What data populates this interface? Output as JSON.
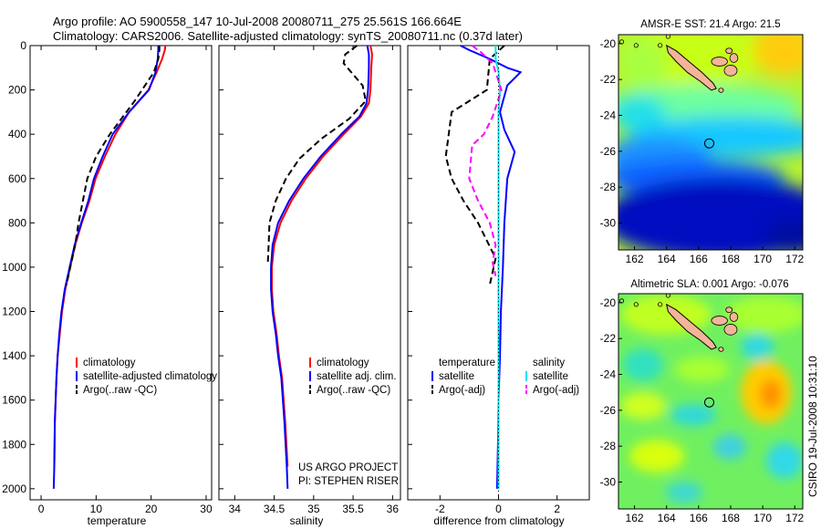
{
  "figure": {
    "title_line1": "Argo profile: AO 5900558_147 10-Jul-2008 20080711_275 25.561S 166.664E",
    "title_line2": "Climatology: CARS2006. Satellite-adjusted climatology: synTS_20080711.nc (0.37d later)",
    "credit": "CSIRO 19-Jul-2008 10:31:10",
    "project_line1": "US ARGO PROJECT",
    "project_line2": "PI: STEPHEN RISER"
  },
  "colors": {
    "climatology": "#ff0000",
    "satellite": "#0000ff",
    "argo": "#000000",
    "sal_satellite": "#00e5ee",
    "sal_argo": "#ff00ff",
    "land": "#f4b49a"
  },
  "chart_data": [
    {
      "type": "line",
      "id": "temperature",
      "xlabel": "temperature",
      "ylabel": "",
      "xlim": [
        -2,
        31
      ],
      "ylim": [
        2050,
        0
      ],
      "xticks": [
        0,
        10,
        20,
        30
      ],
      "yticks": [
        0,
        200,
        400,
        600,
        800,
        1000,
        1200,
        1400,
        1600,
        1800,
        2000
      ],
      "legend": "lower-left",
      "series": [
        {
          "name": "climatology",
          "color": "#ff0000",
          "dash": "solid",
          "x": [
            22.6,
            22.5,
            22.0,
            21.0,
            19.5,
            16.0,
            13.5,
            11.6,
            9.9,
            8.8,
            7.4,
            6.2,
            5.3,
            4.4,
            3.8,
            3.4,
            3.0,
            2.8,
            2.5,
            2.4
          ],
          "y": [
            0,
            20,
            60,
            120,
            200,
            300,
            400,
            500,
            600,
            700,
            800,
            900,
            1000,
            1100,
            1200,
            1300,
            1400,
            1500,
            1700,
            1900
          ]
        },
        {
          "name": "satellite-adjusted climatology",
          "color": "#0000ff",
          "dash": "solid",
          "x": [
            21.3,
            21.3,
            21.2,
            20.8,
            19.6,
            16.0,
            13.0,
            11.2,
            9.6,
            8.6,
            7.3,
            6.1,
            5.2,
            4.3,
            3.7,
            3.3,
            3.0,
            2.8,
            2.5,
            2.4,
            2.3
          ],
          "y": [
            0,
            20,
            60,
            120,
            200,
            300,
            400,
            500,
            600,
            700,
            800,
            900,
            1000,
            1100,
            1200,
            1300,
            1400,
            1500,
            1700,
            1900,
            2000
          ]
        },
        {
          "name": "Argo(..raw -QC)",
          "color": "#000000",
          "dash": "dash",
          "x": [
            21.5,
            21.5,
            21.3,
            20.5,
            17.0,
            12.5,
            10.0,
            8.4,
            7.6,
            6.8,
            6.2,
            5.3,
            4.6
          ],
          "y": [
            0,
            20,
            60,
            120,
            250,
            400,
            500,
            600,
            700,
            800,
            900,
            1000,
            1080
          ]
        }
      ]
    },
    {
      "type": "line",
      "id": "salinity",
      "xlabel": "salinity",
      "ylabel": "",
      "xlim": [
        33.8,
        36.1
      ],
      "ylim": [
        2050,
        0
      ],
      "xticks": [
        34,
        34.5,
        35,
        35.5,
        36
      ],
      "xticklabels": [
        "34",
        "34.5",
        "35",
        "35.5",
        "36"
      ],
      "legend": "lower-left",
      "series": [
        {
          "name": "climatology",
          "color": "#ff0000",
          "dash": "solid",
          "x": [
            35.72,
            35.74,
            35.73,
            35.72,
            35.7,
            35.6,
            35.38,
            35.12,
            34.9,
            34.72,
            34.58,
            34.5,
            34.47,
            34.47,
            34.49,
            34.53,
            34.56,
            34.6,
            34.64,
            34.67
          ],
          "y": [
            0,
            40,
            100,
            200,
            260,
            320,
            400,
            500,
            600,
            700,
            800,
            900,
            1000,
            1100,
            1200,
            1300,
            1400,
            1500,
            1700,
            1900
          ]
        },
        {
          "name": "satellite adj. clim.",
          "color": "#0000ff",
          "dash": "solid",
          "x": [
            35.68,
            35.7,
            35.7,
            35.69,
            35.67,
            35.58,
            35.35,
            35.09,
            34.87,
            34.69,
            34.55,
            34.48,
            34.46,
            34.46,
            34.48,
            34.52,
            34.55,
            34.59,
            34.63,
            34.66,
            34.67
          ],
          "y": [
            0,
            40,
            100,
            200,
            260,
            320,
            400,
            500,
            600,
            700,
            800,
            900,
            1000,
            1100,
            1200,
            1300,
            1400,
            1500,
            1700,
            1900,
            2000
          ]
        },
        {
          "name": "Argo(..raw -QC)",
          "color": "#000000",
          "dash": "dash",
          "x": [
            35.55,
            35.4,
            35.38,
            35.5,
            35.62,
            35.66,
            35.45,
            35.1,
            34.82,
            34.65,
            34.52,
            34.44,
            34.43,
            34.42
          ],
          "y": [
            0,
            40,
            80,
            130,
            180,
            250,
            330,
            420,
            510,
            600,
            700,
            800,
            900,
            980
          ]
        }
      ]
    },
    {
      "type": "line",
      "id": "difference",
      "xlabel": "difference from climatology",
      "ylabel": "",
      "xlim": [
        -3.1,
        3.1
      ],
      "ylim": [
        2050,
        0
      ],
      "xticks": [
        -2,
        0,
        2
      ],
      "legend": "lower-center",
      "legend_groups": [
        "temperature",
        "salinity"
      ],
      "series": [
        {
          "name": "satellite",
          "group": "temperature",
          "color": "#0000ff",
          "dash": "solid",
          "x": [
            -1.3,
            -1.0,
            -0.3,
            0.3,
            0.75,
            0.3,
            0.05,
            0.2,
            0.55,
            0.3,
            0.2,
            0.15,
            0.08,
            0.05,
            0.0,
            -0.02,
            -0.05
          ],
          "y": [
            0,
            20,
            60,
            100,
            120,
            180,
            300,
            380,
            480,
            600,
            800,
            1000,
            1200,
            1400,
            1600,
            1800,
            2000
          ]
        },
        {
          "name": "Argo(-adj)",
          "group": "temperature",
          "color": "#000000",
          "dash": "dash",
          "x": [
            0.2,
            -0.3,
            -0.4,
            -1.6,
            -1.7,
            -1.8,
            -1.6,
            -1.2,
            -0.7,
            -0.4,
            -0.1,
            -0.3
          ],
          "y": [
            0,
            60,
            200,
            300,
            400,
            500,
            600,
            700,
            800,
            880,
            960,
            1080
          ]
        },
        {
          "name": "satellite",
          "group": "salinity",
          "color": "#00e5ee",
          "dash": "solid",
          "x": [
            -0.1,
            -0.1,
            0.0,
            0.05,
            0.0,
            0.0,
            0.0,
            0.0,
            0.0,
            0.0,
            0.0,
            0.0,
            0.0,
            0.0
          ],
          "y": [
            0,
            60,
            120,
            200,
            300,
            400,
            600,
            800,
            1000,
            1200,
            1400,
            1600,
            1800,
            2000
          ]
        },
        {
          "name": "Argo(-adj)",
          "group": "salinity",
          "color": "#ff00ff",
          "dash": "dash",
          "x": [
            -0.9,
            -0.6,
            -0.2,
            0.1,
            -0.2,
            -0.5,
            -0.9,
            -1.0,
            -0.7,
            -0.3,
            -0.1,
            -0.2,
            -0.1
          ],
          "y": [
            0,
            30,
            80,
            200,
            320,
            400,
            450,
            600,
            700,
            800,
            900,
            980,
            1040
          ]
        },
        {
          "name": "",
          "group": "",
          "color": "#000000",
          "dash": "dot",
          "x": [
            0,
            0
          ],
          "y": [
            0,
            2050
          ]
        }
      ]
    },
    {
      "type": "heatmap",
      "id": "sst_map",
      "title": "AMSR-E SST: 21.4 Argo: 21.5",
      "xlim": [
        161,
        172.5
      ],
      "ylim": [
        -31.5,
        -19.5
      ],
      "xticks": [
        162,
        164,
        166,
        168,
        170,
        172
      ],
      "yticks": [
        -20,
        -22,
        -24,
        -26,
        -28,
        -30
      ],
      "profile_marker": {
        "lon": 166.664,
        "lat": -25.561
      },
      "colorscale": "jet"
    },
    {
      "type": "heatmap",
      "id": "sla_map",
      "title": "Altimetric SLA: 0.001 Argo: -0.076",
      "xlim": [
        161,
        172.5
      ],
      "ylim": [
        -31.5,
        -19.5
      ],
      "xticks": [
        162,
        164,
        166,
        168,
        170,
        172
      ],
      "yticks": [
        -20,
        -22,
        -24,
        -26,
        -28,
        -30
      ],
      "profile_marker": {
        "lon": 166.664,
        "lat": -25.561
      },
      "colorscale": "jet"
    }
  ]
}
